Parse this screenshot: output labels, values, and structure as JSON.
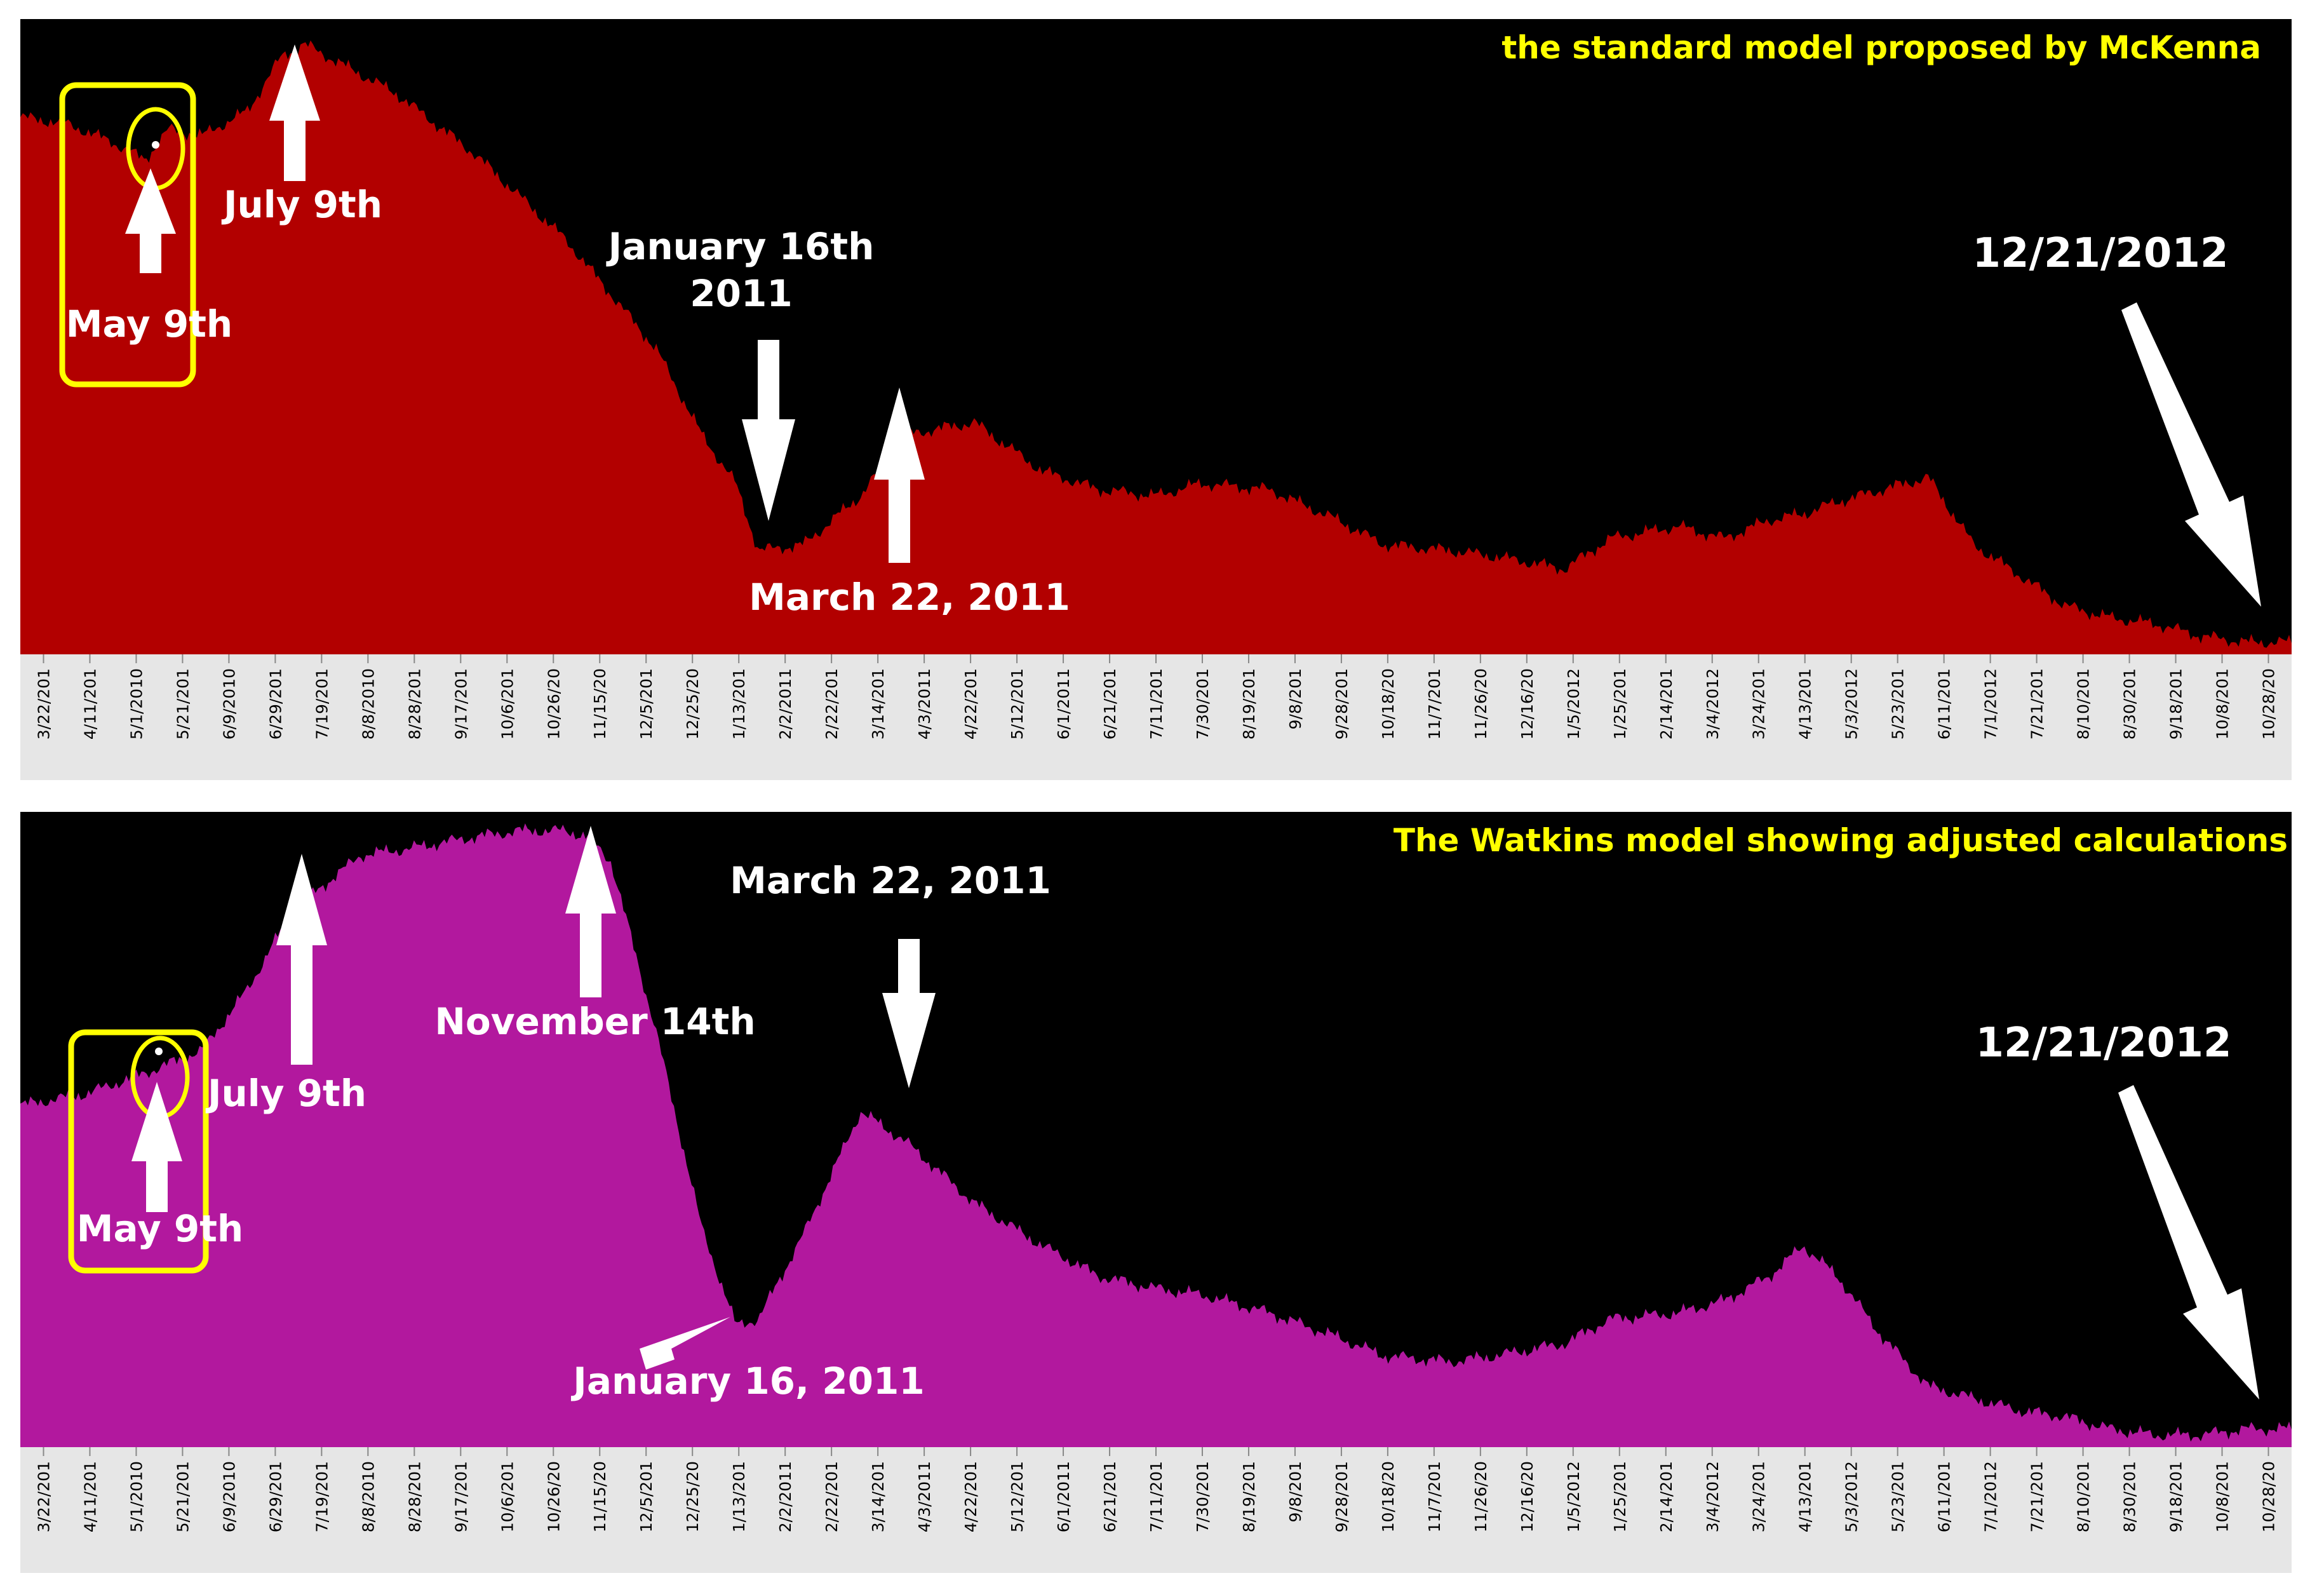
{
  "chart_data": [
    {
      "type": "area",
      "title": "the standard model proposed by McKenna",
      "color": "#b20000",
      "title_color": "#ffff00",
      "ylim": [
        0,
        100
      ],
      "ticks": [
        "3/22/201",
        "4/11/201",
        "5/1/2010",
        "5/21/201",
        "6/9/2010",
        "6/29/201",
        "7/19/201",
        "8/8/2010",
        "8/28/201",
        "9/17/201",
        "10/6/201",
        "10/26/20",
        "11/15/20",
        "12/5/201",
        "12/25/20",
        "1/13/201",
        "2/2/2011",
        "2/22/201",
        "3/14/201",
        "4/3/2011",
        "4/22/201",
        "5/12/201",
        "6/1/2011",
        "6/21/201",
        "7/11/201",
        "7/30/201",
        "8/19/201",
        "9/8/201",
        "9/28/201",
        "10/18/20",
        "11/7/201",
        "11/26/20",
        "12/16/20",
        "1/5/2012",
        "1/25/201",
        "2/14/201",
        "3/4/2012",
        "3/24/201",
        "4/13/201",
        "5/3/2012",
        "5/23/201",
        "6/11/201",
        "7/1/2012",
        "7/21/201",
        "8/10/201",
        "8/30/201",
        "9/18/201",
        "10/8/201",
        "10/28/20"
      ],
      "series": [
        {
          "name": "standard model",
          "x": [
            0,
            0.02,
            0.04,
            0.055,
            0.065,
            0.08,
            0.1,
            0.115,
            0.125,
            0.145,
            0.165,
            0.2,
            0.24,
            0.28,
            0.3,
            0.315,
            0.325,
            0.345,
            0.37,
            0.39,
            0.42,
            0.45,
            0.475,
            0.5,
            0.52,
            0.55,
            0.58,
            0.6,
            0.63,
            0.65,
            0.68,
            0.7,
            0.73,
            0.75,
            0.77,
            0.785,
            0.8,
            0.82,
            0.84,
            0.86,
            0.88,
            0.9,
            0.92,
            0.94,
            0.96,
            0.98,
            1.0
          ],
          "values": [
            88,
            87,
            84,
            81,
            86,
            85,
            89,
            98,
            100,
            96,
            92,
            82,
            68,
            50,
            36,
            28,
            17,
            18,
            26,
            36,
            38,
            30,
            27,
            26,
            28,
            27,
            22,
            18,
            17,
            16,
            14,
            19,
            21,
            19,
            22,
            23,
            25,
            27,
            29,
            18,
            13,
            8,
            6,
            5,
            3,
            2,
            2
          ]
        }
      ],
      "annotations": [
        {
          "text": "July 9th"
        },
        {
          "text": "May 9th"
        },
        {
          "text": "January 16th"
        },
        {
          "text": "2011"
        },
        {
          "text": "March 22, 2011"
        },
        {
          "text": "12/21/2012"
        }
      ]
    },
    {
      "type": "area",
      "title": "The Watkins model showing adjusted calculations",
      "color": "#b2189e",
      "title_color": "#ffff00",
      "ylim": [
        0,
        100
      ],
      "ticks": [
        "3/22/201",
        "4/11/201",
        "5/1/2010",
        "5/21/201",
        "6/9/2010",
        "6/29/201",
        "7/19/201",
        "8/8/2010",
        "8/28/201",
        "9/17/201",
        "10/6/201",
        "10/26/20",
        "11/15/20",
        "12/5/201",
        "12/25/20",
        "1/13/201",
        "2/2/2011",
        "2/22/201",
        "3/14/201",
        "4/3/2011",
        "4/22/201",
        "5/12/201",
        "6/1/2011",
        "6/21/201",
        "7/11/201",
        "7/30/201",
        "8/19/201",
        "9/8/201",
        "9/28/201",
        "10/18/20",
        "11/7/201",
        "11/26/20",
        "12/16/20",
        "1/5/2012",
        "1/25/201",
        "2/14/201",
        "3/4/2012",
        "3/24/201",
        "4/13/201",
        "5/3/2012",
        "5/23/201",
        "6/11/201",
        "7/1/2012",
        "7/21/201",
        "8/10/201",
        "8/30/201",
        "9/18/201",
        "10/8/201",
        "10/28/20"
      ],
      "series": [
        {
          "name": "Watkins model",
          "x": [
            0,
            0.03,
            0.06,
            0.08,
            0.1,
            0.12,
            0.15,
            0.17,
            0.2,
            0.22,
            0.24,
            0.25,
            0.26,
            0.28,
            0.3,
            0.315,
            0.325,
            0.345,
            0.37,
            0.39,
            0.42,
            0.45,
            0.475,
            0.5,
            0.52,
            0.55,
            0.58,
            0.6,
            0.63,
            0.65,
            0.68,
            0.7,
            0.73,
            0.75,
            0.77,
            0.785,
            0.8,
            0.82,
            0.84,
            0.86,
            0.88,
            0.9,
            0.92,
            0.94,
            0.96,
            0.98,
            1.0
          ],
          "values": [
            56,
            58,
            62,
            65,
            75,
            88,
            97,
            98,
            100,
            101,
            101,
            100,
            96,
            68,
            36,
            20,
            21,
            35,
            55,
            50,
            40,
            33,
            28,
            26,
            25,
            22,
            18,
            15,
            14,
            15,
            17,
            21,
            22,
            24,
            28,
            33,
            28,
            18,
            10,
            8,
            6,
            5,
            3,
            2,
            2,
            3,
            3
          ]
        }
      ],
      "annotations": [
        {
          "text": "July 9th"
        },
        {
          "text": "November 14th"
        },
        {
          "text": "May 9th"
        },
        {
          "text": "March 22, 2011"
        },
        {
          "text": "January 16, 2011"
        },
        {
          "text": "12/21/2012"
        }
      ]
    }
  ]
}
